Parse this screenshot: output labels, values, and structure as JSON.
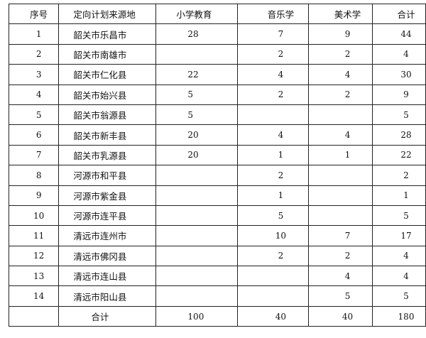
{
  "headers": [
    "序号",
    "定向计划来源地",
    "小学教育",
    "音乐学",
    "美术学",
    "合计"
  ],
  "rows": [
    [
      "1",
      "韶关市乐昌市",
      "28",
      "7",
      "9",
      "44"
    ],
    [
      "2",
      "韶关市南雄市",
      "",
      "2",
      "2",
      "4"
    ],
    [
      "3",
      "韶关市仁化县",
      "22",
      "4",
      "4",
      "30"
    ],
    [
      "4",
      "韶关市始兴县",
      "5",
      "2",
      "2",
      "9"
    ],
    [
      "5",
      "韶关市翁源县",
      "5",
      "",
      "",
      "5"
    ],
    [
      "6",
      "韶关市新丰县",
      "20",
      "4",
      "4",
      "28"
    ],
    [
      "7",
      "韶关市乳源县",
      "20",
      "1",
      "1",
      "22"
    ],
    [
      "8",
      "河源市和平县",
      "",
      "2",
      "",
      "2"
    ],
    [
      "9",
      "河源市紫金县",
      "",
      "1",
      "",
      "1"
    ],
    [
      "10",
      "河源市连平县",
      "",
      "5",
      "",
      "5"
    ],
    [
      "11",
      "清远市连州市",
      "",
      "10",
      "7",
      "17"
    ],
    [
      "12",
      "清远市佛冈县",
      "",
      "2",
      "2",
      "4"
    ],
    [
      "13",
      "清远市连山县",
      "",
      "",
      "4",
      "4"
    ],
    [
      "14",
      "清远市阳山县",
      "",
      "",
      "5",
      "5"
    ]
  ],
  "total": [
    "",
    "合计",
    "100",
    "40",
    "40",
    "180"
  ]
}
